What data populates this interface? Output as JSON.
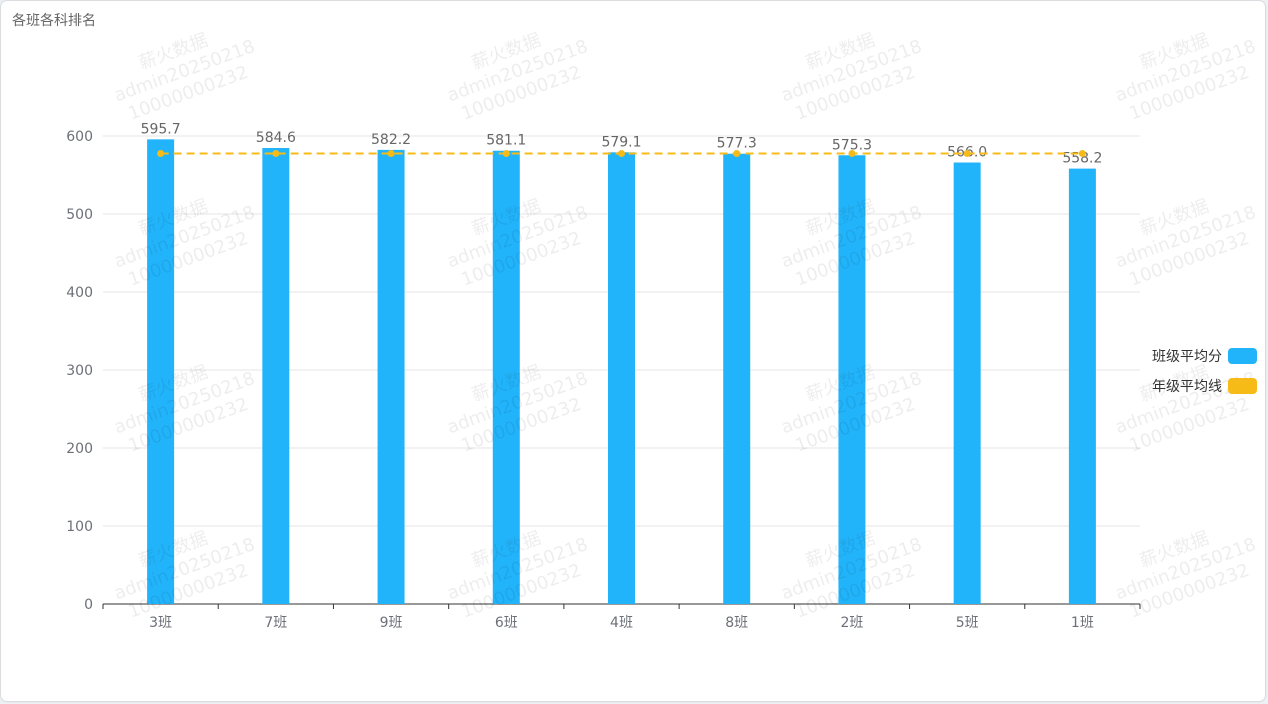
{
  "panel": {
    "title": "各班各科排名"
  },
  "watermark": {
    "line1": "薪火数据",
    "line2": "admin20250218",
    "line3": "10000000232"
  },
  "legend": [
    {
      "label": "班级平均分",
      "color": "#22b4fb"
    },
    {
      "label": "年级平均线",
      "color": "#f7bb17"
    }
  ],
  "chart_data": {
    "type": "bar",
    "categories": [
      "3班",
      "7班",
      "9班",
      "6班",
      "4班",
      "8班",
      "2班",
      "5班",
      "1班"
    ],
    "series": [
      {
        "name": "班级平均分",
        "type": "bar",
        "values": [
          595.7,
          584.6,
          582.2,
          581.1,
          579.1,
          577.3,
          575.3,
          566.0,
          558.2
        ],
        "color": "#22b4fb"
      },
      {
        "name": "年级平均线",
        "type": "line",
        "values": [
          577.6,
          577.6,
          577.6,
          577.6,
          577.6,
          577.6,
          577.6,
          577.6,
          577.6
        ],
        "color": "#f7bb17"
      }
    ],
    "title": "各班各科排名",
    "xlabel": "",
    "ylabel": "",
    "ylim": [
      0,
      600
    ],
    "yticks": [
      0,
      100,
      200,
      300,
      400,
      500,
      600
    ],
    "grid": true,
    "legend_position": "right"
  }
}
